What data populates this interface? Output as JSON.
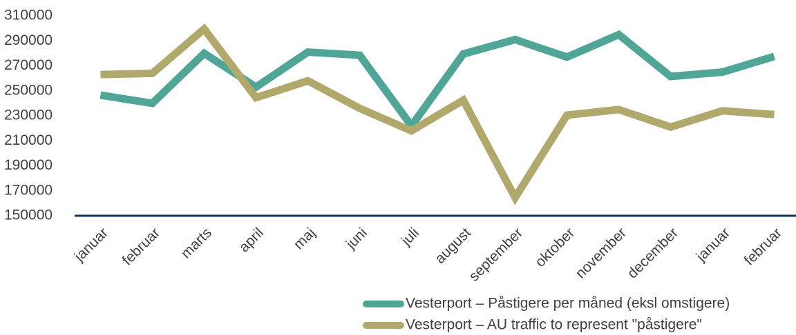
{
  "chart_data": {
    "type": "line",
    "categories": [
      "januar",
      "februar",
      "marts",
      "april",
      "maj",
      "juni",
      "juli",
      "august",
      "september",
      "oktober",
      "november",
      "december",
      "januar",
      "februar"
    ],
    "series": [
      {
        "name": "Vesterport – Påstigere per måned (eksl omstigere)",
        "color": "#4fa596",
        "values": [
          246500,
          240000,
          280000,
          253000,
          281000,
          278500,
          222000,
          279500,
          291000,
          277000,
          295000,
          261500,
          265000,
          277500
        ]
      },
      {
        "name": "Vesterport – AU traffic to represent \"påstigere\"",
        "color": "#b1a96c",
        "values": [
          263000,
          264000,
          299500,
          244500,
          258000,
          236000,
          218000,
          242500,
          164500,
          230500,
          235000,
          221000,
          234000,
          231000
        ]
      }
    ],
    "ylim": [
      150000,
      310000
    ],
    "yticks": [
      150000,
      170000,
      190000,
      210000,
      230000,
      250000,
      270000,
      290000,
      310000
    ],
    "grid": false
  }
}
